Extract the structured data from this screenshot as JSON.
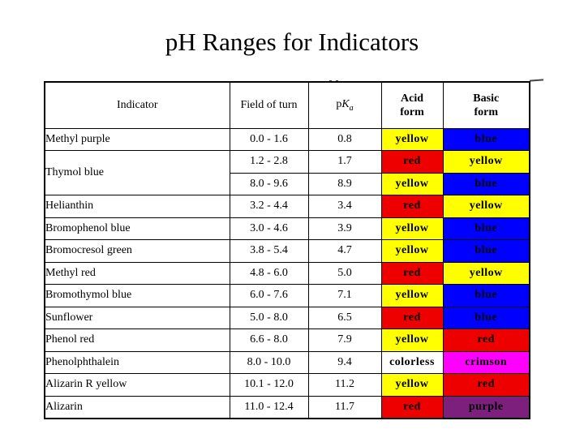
{
  "title": "pH Ranges for Indicators",
  "colors": {
    "yellow": "#ffff00",
    "blue": "#0000ff",
    "red": "#ee0000",
    "magenta": "#ff00ff",
    "purple": "#7d1f7d",
    "white": "#ffffff"
  },
  "table": {
    "headers": {
      "indicator": "Indicator",
      "field_of_turn": "Field of turn",
      "pka": {
        "base": "p",
        "symbol": "K",
        "subscript": "a"
      },
      "acid_form": [
        "Acid",
        "form"
      ],
      "basic_form": [
        "Basic",
        "form"
      ]
    },
    "rows": [
      {
        "indicator": "Methyl purple",
        "field_of_turn": "0.0 - 1.6",
        "pka": "0.8",
        "acid_form": {
          "label": "yellow",
          "color": "#ffff00"
        },
        "basic_form": {
          "label": "blue",
          "color": "#0000ff"
        }
      },
      {
        "indicator": "Thymol blue",
        "field_of_turn": "1.2 - 2.8",
        "pka": "1.7",
        "acid_form": {
          "label": "red",
          "color": "#ee0000"
        },
        "basic_form": {
          "label": "yellow",
          "color": "#ffff00"
        }
      },
      {
        "field_of_turn": "8.0 - 9.6",
        "pka": "8.9",
        "acid_form": {
          "label": "yellow",
          "color": "#ffff00"
        },
        "basic_form": {
          "label": "blue",
          "color": "#0000ff"
        }
      },
      {
        "indicator": "Helianthin",
        "field_of_turn": "3.2 - 4.4",
        "pka": "3.4",
        "acid_form": {
          "label": "red",
          "color": "#ee0000"
        },
        "basic_form": {
          "label": "yellow",
          "color": "#ffff00"
        }
      },
      {
        "indicator": "Bromophenol blue",
        "field_of_turn": "3.0 - 4.6",
        "pka": "3.9",
        "acid_form": {
          "label": "yellow",
          "color": "#ffff00"
        },
        "basic_form": {
          "label": "blue",
          "color": "#0000ff"
        }
      },
      {
        "indicator": "Bromocresol green",
        "field_of_turn": "3.8 - 5.4",
        "pka": "4.7",
        "acid_form": {
          "label": "yellow",
          "color": "#ffff00"
        },
        "basic_form": {
          "label": "blue",
          "color": "#0000ff"
        }
      },
      {
        "indicator": "Methyl red",
        "field_of_turn": "4.8 - 6.0",
        "pka": "5.0",
        "acid_form": {
          "label": "red",
          "color": "#ee0000"
        },
        "basic_form": {
          "label": "yellow",
          "color": "#ffff00"
        }
      },
      {
        "indicator": "Bromothymol blue",
        "field_of_turn": "6.0 - 7.6",
        "pka": "7.1",
        "acid_form": {
          "label": "yellow",
          "color": "#ffff00"
        },
        "basic_form": {
          "label": "blue",
          "color": "#0000ff"
        }
      },
      {
        "indicator": "Sunflower",
        "field_of_turn": "5.0 - 8.0",
        "pka": "6.5",
        "acid_form": {
          "label": "red",
          "color": "#ee0000"
        },
        "basic_form": {
          "label": "blue",
          "color": "#0000ff"
        }
      },
      {
        "indicator": "Phenol red",
        "field_of_turn": "6.6 - 8.0",
        "pka": "7.9",
        "acid_form": {
          "label": "yellow",
          "color": "#ffff00"
        },
        "basic_form": {
          "label": "red",
          "color": "#ee0000"
        }
      },
      {
        "indicator": "Phenolphthalein",
        "field_of_turn": "8.0 - 10.0",
        "pka": "9.4",
        "acid_form": {
          "label": "colorless",
          "color": "#ffffff"
        },
        "basic_form": {
          "label": "crimson",
          "color": "#ff00ff"
        }
      },
      {
        "indicator": "Alizarin R yellow",
        "field_of_turn": "10.1 - 12.0",
        "pka": "11.2",
        "acid_form": {
          "label": "yellow",
          "color": "#ffff00"
        },
        "basic_form": {
          "label": "red",
          "color": "#ee0000"
        }
      },
      {
        "indicator": "Alizarin",
        "field_of_turn": "11.0 - 12.4",
        "pka": "11.7",
        "acid_form": {
          "label": "red",
          "color": "#ee0000"
        },
        "basic_form": {
          "label": "purple",
          "color": "#7d1f7d"
        }
      }
    ]
  }
}
